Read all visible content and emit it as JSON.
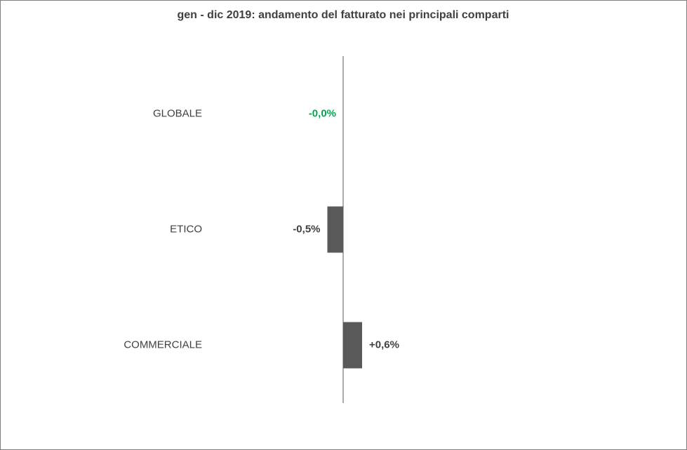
{
  "chart_data": {
    "type": "hbar",
    "title": "gen - dic 2019:  andamento del fatturato nei principali comparti",
    "categories": [
      "GLOBALE",
      "ETICO",
      "COMMERCIALE"
    ],
    "values": [
      0,
      -0.5,
      0.6
    ],
    "value_labels": [
      "-0,0%",
      "-0,5%",
      "+0,6%"
    ],
    "value_label_colors": [
      "#00a651",
      "#404040",
      "#404040"
    ],
    "color": "#595959",
    "xlim": [
      -1,
      1
    ]
  }
}
